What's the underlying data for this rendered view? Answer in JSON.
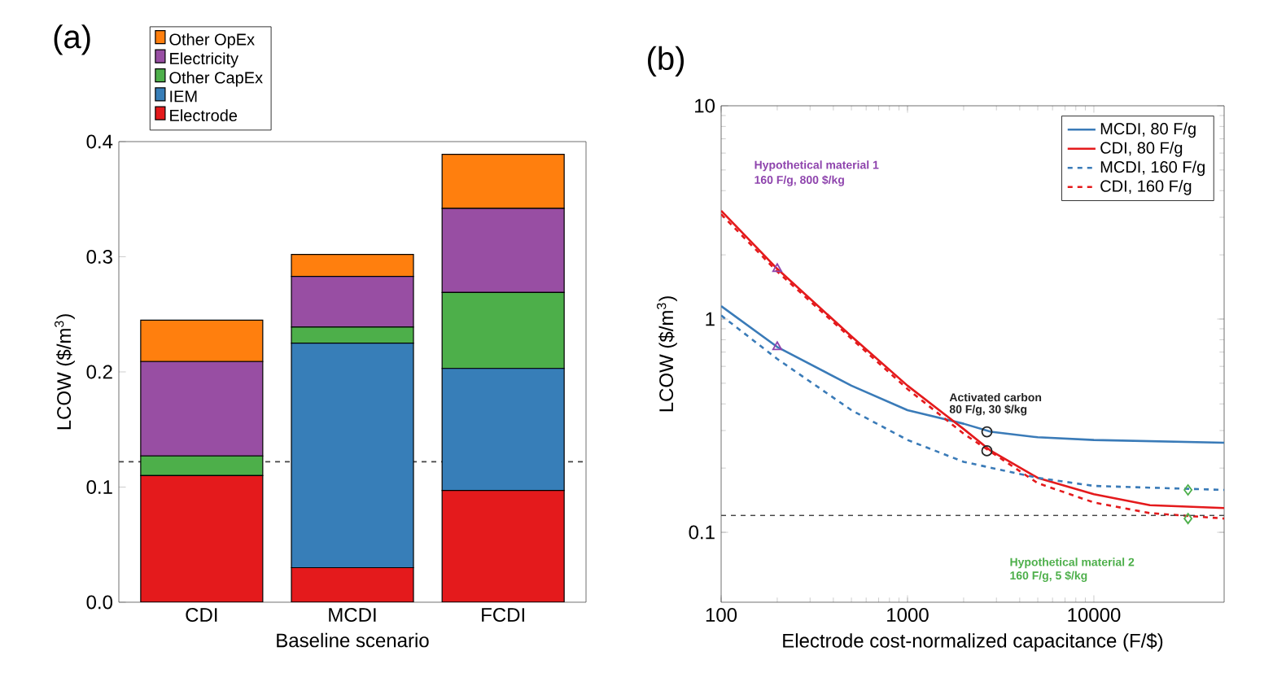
{
  "chart_data": [
    {
      "type": "bar",
      "title": "(a)",
      "xlabel": "Baseline scenario",
      "ylabel": "LCOW ($/m$^{3}$)",
      "stacked": true,
      "legend": "top left",
      "categories": [
        "CDI",
        "MCDI",
        "FCDI"
      ],
      "series": [
        {
          "name": "Electrode",
          "color": "#e41a1c",
          "values": [
            0.11,
            0.03,
            0.097
          ]
        },
        {
          "name": "IEM",
          "color": "#377eb8",
          "values": [
            0,
            0.195,
            0.106
          ]
        },
        {
          "name": "Other CapEx",
          "color": "#4daf4a",
          "values": [
            0.017,
            0.014,
            0.066
          ]
        },
        {
          "name": "Electricity",
          "color": "#984ea3",
          "values": [
            0.082,
            0.044,
            0.073
          ]
        },
        {
          "name": "Other OpEx",
          "color": "#ff7f0e",
          "values": [
            0.036,
            0.019,
            0.047
          ]
        }
      ],
      "ylim": [
        0,
        0.4
      ],
      "yticks": [
        {
          "value": 0,
          "label": "0.0"
        },
        0.1,
        0.2,
        0.3,
        0.4
      ],
      "ref_lines": [
        {
          "axis": "y",
          "value": 0.122,
          "color": "#444444",
          "line_style": "dashed"
        }
      ]
    },
    {
      "type": "line",
      "title": "(b)",
      "xlabel": "Electrode cost-normalized capacitance  (F/$)",
      "ylabel": "LCOW ($/m$^{3}$)",
      "log": "xy",
      "legend": "top right",
      "xlim": [
        100,
        50000
      ],
      "ylim": [
        0.047,
        10
      ],
      "xticks": [
        100,
        1000,
        10000
      ],
      "yticks": [
        0.1,
        1,
        10
      ],
      "series": [
        {
          "name": "MCDI, 80 F/g",
          "color": "#3a7bb8",
          "line_style": "solid",
          "x": [
            100,
            200,
            500,
            1000,
            2000,
            2800,
            5000,
            10000,
            50000
          ],
          "values": [
            1.15,
            0.74,
            0.487,
            0.374,
            0.323,
            0.296,
            0.279,
            0.271,
            0.263
          ]
        },
        {
          "name": "CDI, 80 F/g",
          "color": "#e41a1c",
          "line_style": "solid",
          "x": [
            100,
            200,
            500,
            1000,
            2000,
            2800,
            5000,
            10000,
            20000,
            50000
          ],
          "values": [
            3.22,
            1.72,
            0.83,
            0.487,
            0.305,
            0.241,
            0.18,
            0.151,
            0.134,
            0.13
          ]
        },
        {
          "name": "MCDI, 160 F/g",
          "color": "#3a7bb8",
          "line_style": "dashed",
          "x": [
            100,
            200,
            500,
            1000,
            2000,
            5000,
            10000,
            50000
          ],
          "values": [
            1.04,
            0.65,
            0.374,
            0.271,
            0.214,
            0.18,
            0.165,
            0.158
          ]
        },
        {
          "name": "CDI, 160 F/g",
          "color": "#e41a1c",
          "line_style": "dashed",
          "x": [
            100,
            200,
            500,
            1000,
            2000,
            5000,
            10000,
            20000,
            50000
          ],
          "values": [
            3.1,
            1.67,
            0.81,
            0.47,
            0.29,
            0.17,
            0.138,
            0.123,
            0.116
          ]
        },
        {
          "type": "scatter",
          "marker": "triangle",
          "color": "#8e44ad",
          "x": [
            200,
            200
          ],
          "values": [
            1.72,
            0.74
          ]
        },
        {
          "type": "scatter",
          "marker": "circle",
          "color": "#222222",
          "x": [
            2667,
            2667
          ],
          "values": [
            0.296,
            0.241
          ]
        },
        {
          "type": "scatter",
          "marker": "diamond",
          "color": "#4daf4a",
          "x": [
            32000,
            32000
          ],
          "values": [
            0.158,
            0.116
          ]
        }
      ],
      "ref_lines": [
        {
          "axis": "y",
          "value": 0.12,
          "color": "#444444",
          "line_style": "dashed"
        }
      ],
      "annotations": [
        "Hypothetical material 1",
        "160 F/g, 800 $/kg",
        "Activated carbon",
        "80 F/g, 30 $/kg",
        "Hypothetical material 2",
        "160 F/g, 5 $/kg"
      ]
    }
  ]
}
